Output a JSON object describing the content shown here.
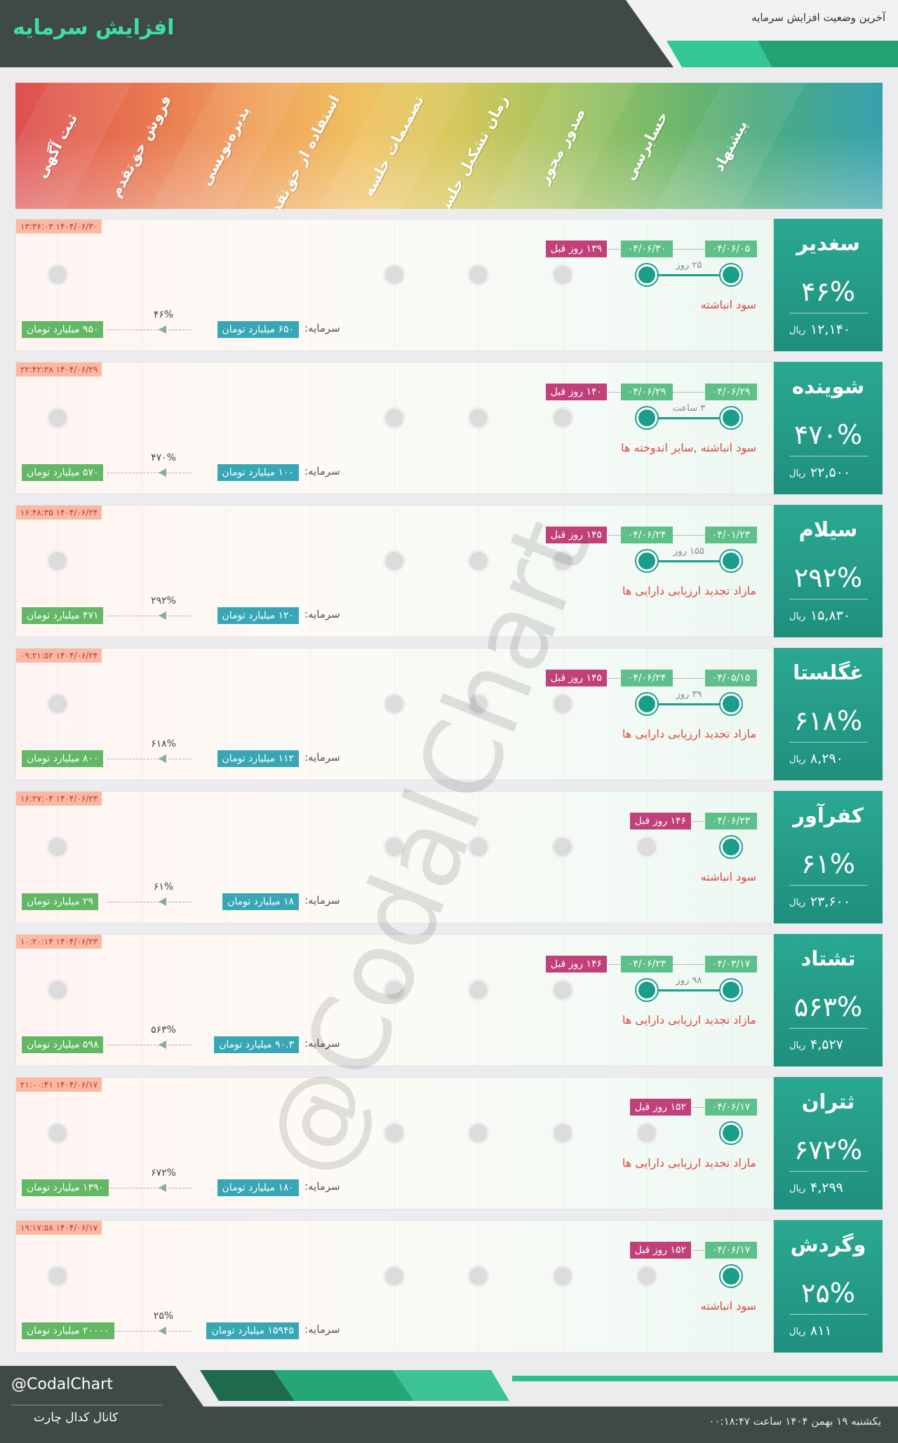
{
  "header": {
    "title": "افزایش سرمایه",
    "subtitle": "آخرین وضعیت افزایش سرمایه"
  },
  "stages": [
    "ثبت آگهی",
    "فروش حق‌تقدم",
    "پذیره‌نویسی",
    "استفاده از حق‌تقدم",
    "تصمیمات جلسه",
    "زمان تشکیل جلسه",
    "صدور مجوز",
    "حسابرسی",
    "پیشنهاد"
  ],
  "capital_label": "سرمایه:",
  "price_unit": "ریال",
  "watermark": "@CodalChart",
  "rows": [
    {
      "name": "سغدیر",
      "percent": "۴۶%",
      "price": "۱۲,۱۴۰",
      "timestamp": "۱۴۰۴/۰۶/۳۰ ۱۳:۳۶:۰۳",
      "dates": [
        "۰۴/۰۶/۰۵",
        "۰۴/۰۶/۳۰"
      ],
      "days_ago": "۱۳۹ روز قبل",
      "gap": "۲۵ روز",
      "source": "سود انباشته",
      "capital": "۶۵۰ میلیارد تومان",
      "new_capital": "۹۵۰ میلیارد تومان",
      "increase": "۴۶%"
    },
    {
      "name": "شوینده",
      "percent": "۴۷۰%",
      "price": "۲۲,۵۰۰",
      "timestamp": "۱۴۰۴/۰۶/۲۹ ۲۲:۴۲:۳۸",
      "dates": [
        "۰۴/۰۶/۲۹",
        "۰۴/۰۶/۲۹"
      ],
      "days_ago": "۱۴۰ روز قبل",
      "gap": "۳ ساعت",
      "source": "سود انباشته ,سایر اندوخته ها",
      "capital": "۱۰۰ میلیارد تومان",
      "new_capital": "۵۷۰ میلیارد تومان",
      "increase": "۴۷۰%"
    },
    {
      "name": "سیلام",
      "percent": "۲۹۲%",
      "price": "۱۵,۸۳۰",
      "timestamp": "۱۴۰۴/۰۶/۲۴ ۱۶:۴۸:۳۵",
      "dates": [
        "۰۴/۰۱/۲۳",
        "۰۴/۰۶/۲۴"
      ],
      "days_ago": "۱۴۵ روز قبل",
      "gap": "۱۵۵ روز",
      "source": "مازاد تجدید ارزیابی دارایی ها",
      "capital": "۱۲۰ میلیارد تومان",
      "new_capital": "۴۷۱ میلیارد تومان",
      "increase": "۲۹۲%"
    },
    {
      "name": "غگلستا",
      "percent": "۶۱۸%",
      "price": "۸,۲۹۰",
      "timestamp": "۱۴۰۴/۰۶/۲۴ ۰۹:۲۱:۵۲",
      "dates": [
        "۰۴/۰۵/۱۵",
        "۰۴/۰۶/۲۴"
      ],
      "days_ago": "۱۴۵ روز قبل",
      "gap": "۳۹ روز",
      "source": "مازاد تجدید ارزیابی دارایی ها",
      "capital": "۱۱۲ میلیارد تومان",
      "new_capital": "۸۰۰ میلیارد تومان",
      "increase": "۶۱۸%"
    },
    {
      "name": "کفرآور",
      "percent": "۶۱%",
      "price": "۲۳,۶۰۰",
      "timestamp": "۱۴۰۴/۰۶/۲۳ ۱۶:۲۷:۰۴",
      "dates": [
        "۰۴/۰۶/۲۳"
      ],
      "days_ago": "۱۴۶ روز قبل",
      "source": "سود انباشته",
      "capital": "۱۸ میلیارد تومان",
      "new_capital": "۲۹ میلیارد تومان",
      "increase": "۶۱%"
    },
    {
      "name": "تشتاد",
      "percent": "۵۶۳%",
      "price": "۴,۵۲۷",
      "timestamp": "۱۴۰۴/۰۶/۲۳ ۱۰:۲۰:۱۴",
      "dates": [
        "۰۴/۰۳/۱۷",
        "۰۴/۰۶/۲۳"
      ],
      "days_ago": "۱۴۶ روز قبل",
      "gap": "۹۸ روز",
      "source": "مازاد تجدید ارزیابی دارایی ها",
      "capital": "۹۰.۳ میلیارد تومان",
      "new_capital": "۵۹۸ میلیارد تومان",
      "increase": "۵۶۳%"
    },
    {
      "name": "ثتران",
      "percent": "۶۷۲%",
      "price": "۴,۲۹۹",
      "timestamp": "۱۴۰۴/۰۶/۱۷ ۲۱:۰۰:۴۱",
      "dates": [
        "۰۴/۰۶/۱۷"
      ],
      "days_ago": "۱۵۲ روز قبل",
      "source": "مازاد تجدید ارزیابی دارایی ها",
      "capital": "۱۸۰ میلیارد تومان",
      "new_capital": "۱۳۹۰ میلیارد تومان",
      "increase": "۶۷۲%"
    },
    {
      "name": "وگردش",
      "percent": "۲۵%",
      "price": "۸۱۱",
      "timestamp": "۱۴۰۴/۰۶/۱۷ ۱۹:۱۷:۵۸",
      "dates": [
        "۰۴/۰۶/۱۷"
      ],
      "days_ago": "۱۵۲ روز قبل",
      "source": "سود انباشته",
      "capital": "۱۵۹۴۵ میلیارد تومان",
      "new_capital": "۲۰۰۰۰ میلیارد تومان",
      "increase": "۲۵%"
    }
  ],
  "footer": {
    "handle": "@CodalChart",
    "channel": "کانال کدال چارت",
    "date": "یکشنبه ۱۹ بهمن ۱۴۰۴ ساعت ۰۰:۱۸:۴۷"
  }
}
